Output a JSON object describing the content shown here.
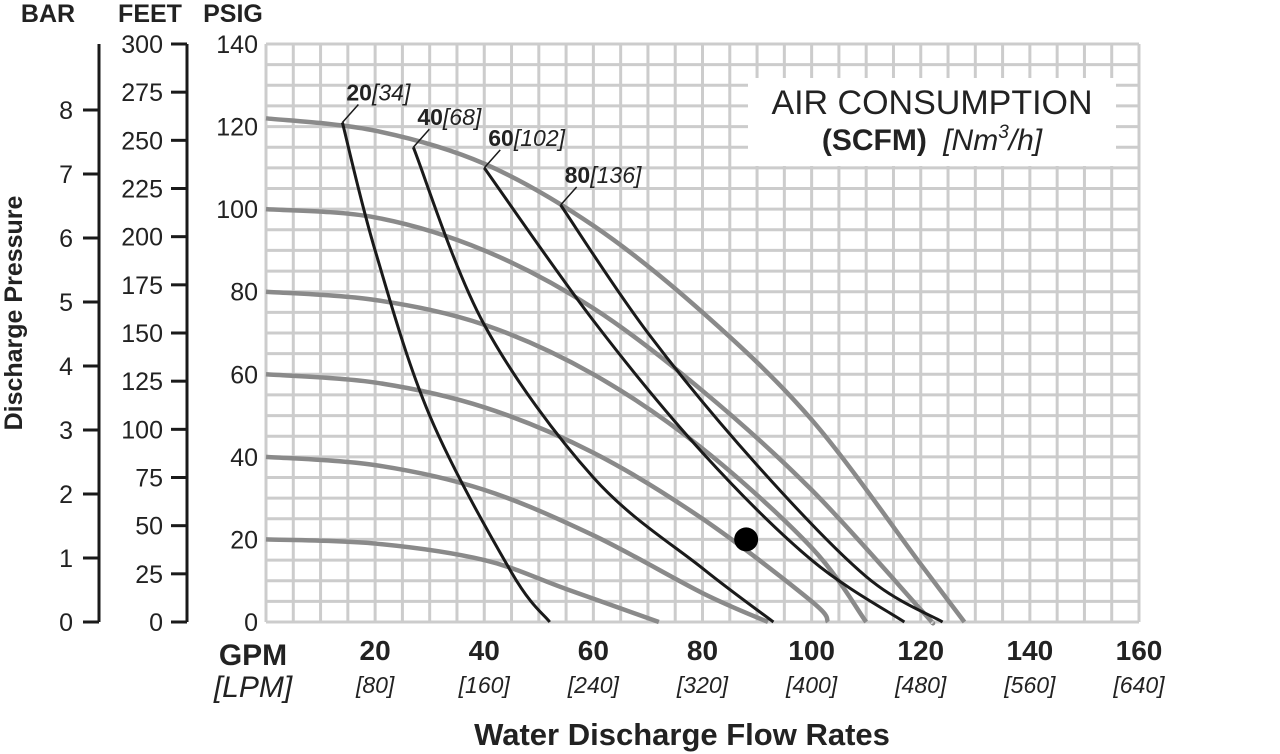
{
  "chart_data": {
    "type": "line",
    "title_line1": "AIR CONSUMPTION",
    "title_bold": "(SCFM)",
    "title_unit_pre": "[Nm",
    "title_unit_sup": "3",
    "title_unit_post": "/h]",
    "y_axis_title": "Discharge Pressure",
    "x_axis_title": "Water Discharge Flow Rates",
    "x_unit_primary": "GPM",
    "x_unit_secondary": "[LPM]",
    "xlim": [
      0,
      160
    ],
    "ylim": [
      0,
      140
    ],
    "x_ticks": [
      20,
      40,
      60,
      80,
      100,
      120,
      140,
      160
    ],
    "x_ticks_lpm": [
      "[80]",
      "[160]",
      "[240]",
      "[320]",
      "[400]",
      "[480]",
      "[560]",
      "[640]"
    ],
    "psig_header": "PSIG",
    "psig_ticks": [
      0,
      20,
      40,
      60,
      80,
      100,
      120,
      140
    ],
    "feet_header": "FEET",
    "feet_ticks": [
      0,
      25,
      50,
      75,
      100,
      125,
      150,
      175,
      200,
      225,
      250,
      275,
      300
    ],
    "bar_header": "BAR",
    "bar_ticks": [
      0,
      1,
      2,
      3,
      4,
      5,
      6,
      7,
      8
    ],
    "pressure_curves": [
      {
        "points": [
          [
            0,
            20
          ],
          [
            20,
            19
          ],
          [
            40,
            15
          ],
          [
            55,
            8
          ],
          [
            72,
            0
          ]
        ]
      },
      {
        "points": [
          [
            0,
            40
          ],
          [
            20,
            38
          ],
          [
            40,
            32
          ],
          [
            60,
            21
          ],
          [
            80,
            7
          ],
          [
            92,
            0
          ]
        ]
      },
      {
        "points": [
          [
            0,
            60
          ],
          [
            20,
            58
          ],
          [
            40,
            52
          ],
          [
            60,
            41
          ],
          [
            80,
            25
          ],
          [
            100,
            5
          ],
          [
            103,
            0
          ]
        ]
      },
      {
        "points": [
          [
            0,
            80
          ],
          [
            20,
            78
          ],
          [
            40,
            72
          ],
          [
            60,
            60
          ],
          [
            80,
            42
          ],
          [
            100,
            18
          ],
          [
            110,
            0
          ]
        ]
      },
      {
        "points": [
          [
            0,
            100
          ],
          [
            20,
            98
          ],
          [
            40,
            90
          ],
          [
            60,
            76
          ],
          [
            80,
            56
          ],
          [
            100,
            32
          ],
          [
            120,
            3
          ],
          [
            122,
            0
          ]
        ]
      },
      {
        "points": [
          [
            0,
            122
          ],
          [
            20,
            119
          ],
          [
            40,
            111
          ],
          [
            60,
            96
          ],
          [
            80,
            75
          ],
          [
            100,
            49
          ],
          [
            120,
            14
          ],
          [
            128,
            0
          ]
        ]
      }
    ],
    "air_curves": [
      {
        "label_bold": "20",
        "label_italic": "[34]",
        "points": [
          [
            14,
            121
          ],
          [
            20,
            90
          ],
          [
            30,
            50
          ],
          [
            45,
            12
          ],
          [
            52,
            0
          ]
        ]
      },
      {
        "label_bold": "40",
        "label_italic": "[68]",
        "points": [
          [
            27,
            115
          ],
          [
            40,
            72
          ],
          [
            60,
            35
          ],
          [
            80,
            13
          ],
          [
            93,
            0
          ]
        ]
      },
      {
        "label_bold": "60",
        "label_italic": "[102]",
        "points": [
          [
            40,
            110
          ],
          [
            60,
            73
          ],
          [
            80,
            41
          ],
          [
            100,
            15
          ],
          [
            117,
            0
          ]
        ]
      },
      {
        "label_bold": "80",
        "label_italic": "[136]",
        "points": [
          [
            54,
            101
          ],
          [
            70,
            70
          ],
          [
            90,
            38
          ],
          [
            110,
            11
          ],
          [
            124,
            0
          ]
        ]
      }
    ],
    "operating_point": {
      "x": 88,
      "y": 20
    },
    "grid": true
  }
}
